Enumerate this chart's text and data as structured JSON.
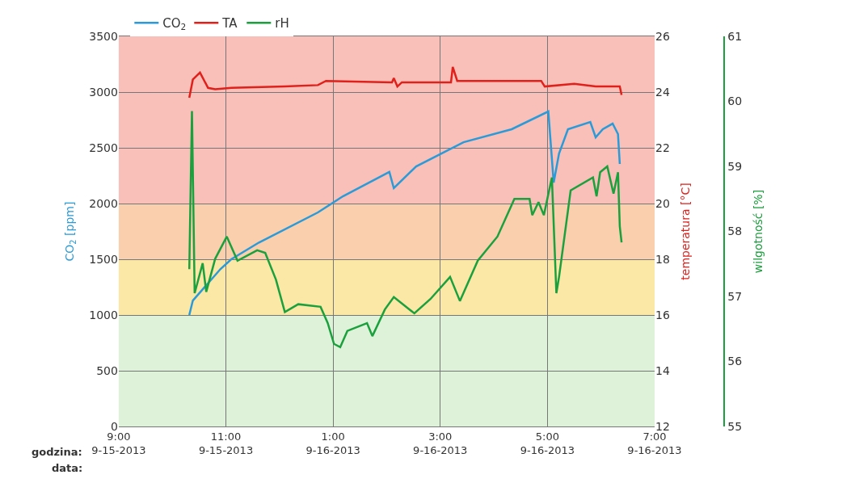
{
  "chart_data": {
    "type": "line",
    "xlim": [
      "2013-09-15T21:00",
      "2013-09-16T07:00"
    ],
    "xticks": [
      {
        "value": "2013-09-15T21:00",
        "label": "9:00\n9-15-2013"
      },
      {
        "value": "2013-09-15T23:00",
        "label": "11:00\n9-15-2013"
      },
      {
        "value": "2013-09-16T01:00",
        "label": "1:00\n9-16-2013"
      },
      {
        "value": "2013-09-16T03:00",
        "label": "3:00\n9-16-2013"
      },
      {
        "value": "2013-09-16T05:00",
        "label": "5:00\n9-16-2013"
      },
      {
        "value": "2013-09-16T07:00",
        "label": "7:00\n9-16-2013"
      }
    ],
    "ylabel": "CO$_{2}$ [ppm]",
    "ylim": [
      0,
      3500
    ],
    "yticks": [
      0,
      500,
      1000,
      1500,
      2000,
      2500,
      3000,
      3500
    ],
    "y2label": "temperatura [°C]",
    "y2lim": [
      12,
      26
    ],
    "y2ticks": [
      12,
      14,
      16,
      18,
      20,
      22,
      24,
      26
    ],
    "y3label": "wilgotność [%]",
    "y3lim": [
      55,
      61
    ],
    "y3ticks": [
      55,
      56,
      57,
      58,
      59,
      60,
      61
    ],
    "annotations": [
      "godzina:",
      "data:"
    ],
    "bands": [
      {
        "axis": "y",
        "from": 0,
        "to": 1000,
        "color": "#def2da"
      },
      {
        "axis": "y",
        "from": 1000,
        "to": 1500,
        "color": "#fbe7a6"
      },
      {
        "axis": "y",
        "from": 1500,
        "to": 2000,
        "color": "#f9cfae"
      },
      {
        "axis": "y",
        "from": 2000,
        "to": 3500,
        "color": "#f8c0b8"
      }
    ],
    "grid": true,
    "legend": "top",
    "line_style": "solid",
    "marker": "none",
    "series": [
      {
        "name": "CO$_{2}$",
        "color": "#2a9ad8",
        "axis": "y",
        "x": [
          "2013-09-15T22:19",
          "2013-09-15T22:23",
          "2013-09-15T22:54",
          "2013-09-15T23:06",
          "2013-09-15T23:37",
          "2013-09-16T00:43",
          "2013-09-16T01:11",
          "2013-09-16T02:03",
          "2013-09-16T02:08",
          "2013-09-16T02:33",
          "2013-09-16T03:26",
          "2013-09-16T04:20",
          "2013-09-16T05:01",
          "2013-09-16T05:07",
          "2013-09-16T05:13",
          "2013-09-16T05:23",
          "2013-09-16T05:48",
          "2013-09-16T05:54",
          "2013-09-16T06:02",
          "2013-09-16T06:13",
          "2013-09-16T06:19",
          "2013-09-16T06:21"
        ],
        "values": [
          1000,
          1130,
          1413,
          1500,
          1650,
          1920,
          2065,
          2283,
          2138,
          2333,
          2550,
          2667,
          2826,
          2188,
          2449,
          2667,
          2732,
          2594,
          2667,
          2717,
          2623,
          2355
        ]
      },
      {
        "name": "TA",
        "color": "#e0201b",
        "axis": "y2",
        "x": [
          "2013-09-15T22:19",
          "2013-09-15T22:23",
          "2013-09-15T22:31",
          "2013-09-15T22:40",
          "2013-09-15T22:48",
          "2013-09-15T23:06",
          "2013-09-16T00:06",
          "2013-09-16T00:43",
          "2013-09-16T00:52",
          "2013-09-16T02:06",
          "2013-09-16T02:08",
          "2013-09-16T02:12",
          "2013-09-16T02:17",
          "2013-09-16T03:12",
          "2013-09-16T03:14",
          "2013-09-16T03:19",
          "2013-09-16T04:53",
          "2013-09-16T04:57",
          "2013-09-16T05:30",
          "2013-09-16T05:54",
          "2013-09-16T06:21",
          "2013-09-16T06:23"
        ],
        "values": [
          23.8,
          24.45,
          24.7,
          24.15,
          24.1,
          24.15,
          24.2,
          24.25,
          24.4,
          24.35,
          24.5,
          24.2,
          24.35,
          24.35,
          24.9,
          24.4,
          24.4,
          24.2,
          24.3,
          24.2,
          24.2,
          23.9
        ]
      },
      {
        "name": "rH",
        "color": "#1aa03c",
        "axis": "y3",
        "x": [
          "2013-09-15T22:19",
          "2013-09-15T22:22",
          "2013-09-15T22:25",
          "2013-09-15T22:34",
          "2013-09-15T22:38",
          "2013-09-15T22:48",
          "2013-09-15T23:01",
          "2013-09-15T23:13",
          "2013-09-15T23:35",
          "2013-09-15T23:44",
          "2013-09-15T23:56",
          "2013-09-16T00:06",
          "2013-09-16T00:21",
          "2013-09-16T00:46",
          "2013-09-16T00:54",
          "2013-09-16T01:01",
          "2013-09-16T01:08",
          "2013-09-16T01:16",
          "2013-09-16T01:38",
          "2013-09-16T01:44",
          "2013-09-16T01:58",
          "2013-09-16T02:08",
          "2013-09-16T02:31",
          "2013-09-16T02:49",
          "2013-09-16T03:11",
          "2013-09-16T03:22",
          "2013-09-16T03:42",
          "2013-09-16T04:04",
          "2013-09-16T04:23",
          "2013-09-16T04:40",
          "2013-09-16T04:43",
          "2013-09-16T04:50",
          "2013-09-16T04:56",
          "2013-09-16T05:05",
          "2013-09-16T05:10",
          "2013-09-16T05:13",
          "2013-09-16T05:26",
          "2013-09-16T05:51",
          "2013-09-16T05:55",
          "2013-09-16T05:59",
          "2013-09-16T06:07",
          "2013-09-16T06:14",
          "2013-09-16T06:19",
          "2013-09-16T06:21",
          "2013-09-16T06:23"
        ],
        "values": [
          57.42,
          59.85,
          57.05,
          57.51,
          57.07,
          57.58,
          57.92,
          57.55,
          57.71,
          57.67,
          57.26,
          56.76,
          56.88,
          56.84,
          56.59,
          56.27,
          56.22,
          56.47,
          56.59,
          56.39,
          56.8,
          56.99,
          56.74,
          56.96,
          57.3,
          56.93,
          57.55,
          57.92,
          58.5,
          58.5,
          58.25,
          58.45,
          58.25,
          58.83,
          57.05,
          57.3,
          58.63,
          58.83,
          58.54,
          58.91,
          59.0,
          58.58,
          58.91,
          58.08,
          57.83
        ]
      }
    ]
  }
}
